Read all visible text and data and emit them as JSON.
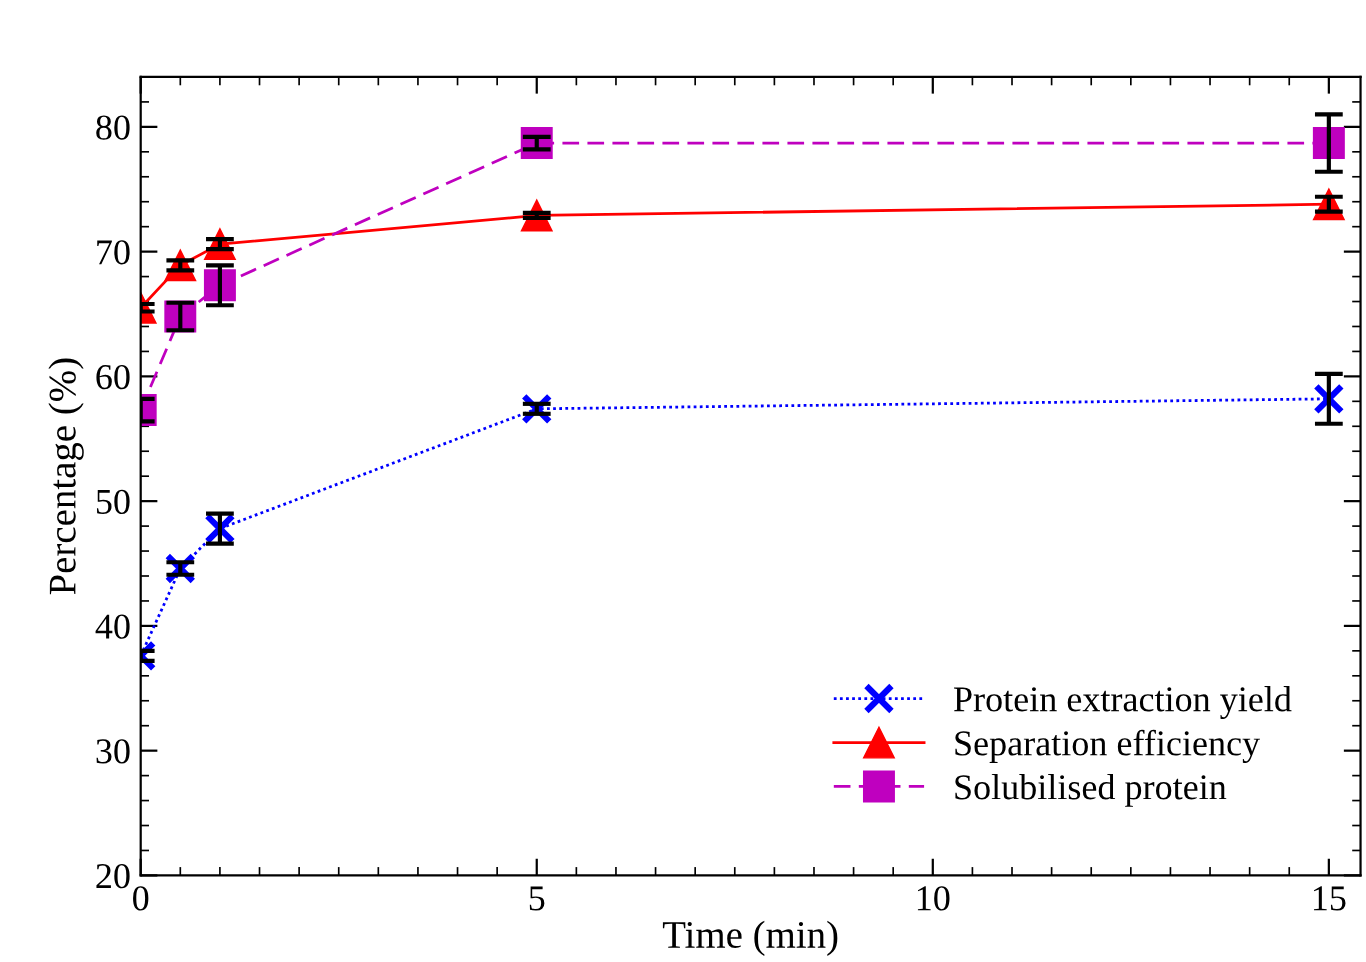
{
  "chart_data": {
    "type": "line",
    "xlabel": "Time (min)",
    "ylabel": "Percentage (%)",
    "x": [
      0,
      0.5,
      1,
      5,
      15
    ],
    "series": [
      {
        "name": "Protein extraction yield",
        "color": "#0000ff",
        "values": [
          37.6,
          44.6,
          47.8,
          57.4,
          58.2
        ],
        "errors": [
          0.4,
          0.5,
          1.2,
          0.4,
          2.0
        ],
        "marker": "cross",
        "line_style": "dotted"
      },
      {
        "name": "Separation efficiency",
        "color": "#ff0000",
        "values": [
          65.5,
          68.9,
          70.6,
          72.9,
          73.8
        ],
        "errors": [
          0.3,
          0.4,
          0.4,
          0.2,
          0.6
        ],
        "marker": "triangle",
        "line_style": "solid"
      },
      {
        "name": "Solubilised protein",
        "color": "#bf00bf",
        "values": [
          57.3,
          64.8,
          67.3,
          78.7,
          78.7
        ],
        "errors": [
          0.9,
          1.1,
          1.6,
          0.5,
          2.3
        ],
        "marker": "square",
        "line_style": "dashed"
      }
    ],
    "xlim": [
      0,
      15.4
    ],
    "ylim": [
      20,
      84
    ],
    "xticks": [
      0,
      5,
      10,
      15
    ],
    "yticks": [
      20,
      30,
      40,
      50,
      60,
      70,
      80
    ],
    "grid": false,
    "legend": "bottom right"
  }
}
